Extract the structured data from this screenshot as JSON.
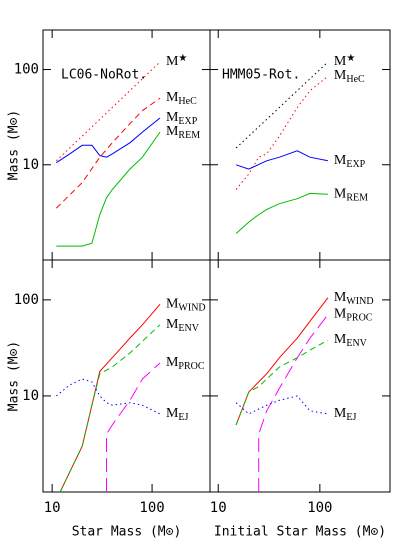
{
  "chart_data": [
    {
      "type": "line",
      "annotation": "LC06-NoRot.",
      "ylabel": "Mass (M⊙)",
      "log_x": true,
      "log_y": true,
      "xlim": [
        8.1,
        380
      ],
      "ylim": [
        1,
        260
      ],
      "xticks": [
        10,
        100
      ],
      "yticks": [
        10,
        100
      ],
      "show_xtick_labels": false,
      "show_ytick_labels": true,
      "series": [
        {
          "name": "M★",
          "color": "#ff0000",
          "dash": "dotted",
          "x": [
            11,
            120
          ],
          "values": [
            11,
            120
          ]
        },
        {
          "name": "MHeC",
          "color": "#ff0000",
          "dash": "dashed",
          "x": [
            11,
            20,
            30,
            40,
            60,
            80,
            120
          ],
          "values": [
            3.5,
            6.5,
            12,
            17,
            27,
            37,
            50
          ]
        },
        {
          "name": "MEXP",
          "color": "#0000ff",
          "dash": "solid",
          "x": [
            11,
            15,
            20,
            25,
            30,
            35,
            40,
            60,
            80,
            120
          ],
          "values": [
            10.5,
            13,
            16,
            16,
            12.5,
            12,
            13,
            17,
            22,
            31
          ]
        },
        {
          "name": "MREM",
          "color": "#00bb00",
          "dash": "solid",
          "x": [
            11,
            20,
            25,
            30,
            35,
            40,
            60,
            80,
            120
          ],
          "values": [
            1.4,
            1.4,
            1.5,
            3,
            4.5,
            5.5,
            9,
            12,
            22
          ]
        }
      ]
    },
    {
      "type": "line",
      "annotation": "HMM05-Rot.",
      "log_x": true,
      "log_y": true,
      "xlim": [
        8.3,
        490
      ],
      "ylim": [
        1,
        260
      ],
      "xticks": [
        10,
        100
      ],
      "yticks": [
        10,
        100
      ],
      "show_xtick_labels": false,
      "show_ytick_labels": false,
      "series": [
        {
          "name": "M★",
          "color": "#000000",
          "dash": "dotted",
          "x": [
            15,
            120
          ],
          "values": [
            15,
            120
          ]
        },
        {
          "name": "MHeC",
          "color": "#ff0000",
          "dash": "dotted",
          "x": [
            15,
            20,
            25,
            30,
            40,
            60,
            80,
            120
          ],
          "values": [
            5.5,
            8,
            12,
            13,
            20,
            40,
            60,
            85
          ]
        },
        {
          "name": "MEXP",
          "color": "#0000ff",
          "dash": "solid",
          "x": [
            15,
            20,
            30,
            40,
            60,
            80,
            120
          ],
          "values": [
            10,
            9,
            11,
            12,
            14,
            12,
            11
          ]
        },
        {
          "name": "MREM",
          "color": "#00bb00",
          "dash": "solid",
          "x": [
            15,
            20,
            25,
            30,
            40,
            60,
            80,
            120
          ],
          "values": [
            1.9,
            2.5,
            3,
            3.4,
            3.9,
            4.4,
            5,
            4.9
          ]
        }
      ]
    },
    {
      "type": "line",
      "ylabel": "Mass (M⊙)",
      "xlabel": "Star Mass (M⊙)",
      "log_x": true,
      "log_y": true,
      "xlim": [
        8.1,
        380
      ],
      "ylim": [
        1,
        260
      ],
      "xticks": [
        10,
        100
      ],
      "yticks": [
        10,
        100
      ],
      "show_xtick_labels": true,
      "show_ytick_labels": true,
      "series": [
        {
          "name": "MWIND",
          "color": "#ff0000",
          "dash": "solid",
          "x": [
            12,
            20,
            25,
            30,
            40,
            60,
            80,
            120
          ],
          "values": [
            1,
            3,
            8,
            18,
            25,
            40,
            55,
            90
          ]
        },
        {
          "name": "MENV",
          "color": "#00bb00",
          "dash": "dashed",
          "x": [
            12,
            20,
            25,
            30,
            40,
            60,
            80,
            120
          ],
          "values": [
            1,
            3,
            8,
            17,
            20,
            28,
            37,
            55
          ]
        },
        {
          "name": "MPROC",
          "color": "#ff00ff",
          "dash": "longdash",
          "x": [
            35,
            35,
            40,
            60,
            80,
            120
          ],
          "values": [
            1,
            4,
            5,
            9,
            15,
            22
          ]
        },
        {
          "name": "MEJ",
          "color": "#0000ff",
          "dash": "dotted",
          "x": [
            11,
            15,
            20,
            25,
            30,
            35,
            40,
            60,
            80,
            120
          ],
          "values": [
            10,
            13,
            15,
            14,
            10,
            8.5,
            8,
            8.5,
            8,
            6.5
          ]
        }
      ]
    },
    {
      "type": "line",
      "xlabel": "Initial Star Mass (M⊙)",
      "log_x": true,
      "log_y": true,
      "xlim": [
        8.3,
        490
      ],
      "ylim": [
        1,
        260
      ],
      "xticks": [
        10,
        100
      ],
      "yticks": [
        10,
        100
      ],
      "show_xtick_labels": true,
      "show_ytick_labels": false,
      "series": [
        {
          "name": "MWIND",
          "color": "#ff0000",
          "dash": "solid",
          "x": [
            15,
            20,
            30,
            40,
            60,
            80,
            120
          ],
          "values": [
            5,
            11,
            17,
            25,
            40,
            60,
            105
          ]
        },
        {
          "name": "MPROC",
          "color": "#ff00ff",
          "dash": "longdash",
          "x": [
            25,
            25,
            30,
            40,
            60,
            80,
            120
          ],
          "values": [
            1,
            4,
            7,
            12,
            25,
            40,
            70
          ]
        },
        {
          "name": "MENV",
          "color": "#00bb00",
          "dash": "dashed",
          "x": [
            15,
            20,
            25,
            30,
            40,
            60,
            80,
            120
          ],
          "values": [
            5,
            11,
            12.5,
            15,
            20,
            25,
            30,
            38
          ]
        },
        {
          "name": "MEJ",
          "color": "#0000ff",
          "dash": "dotted",
          "x": [
            15,
            20,
            30,
            40,
            60,
            80,
            120
          ],
          "values": [
            8.5,
            6.5,
            8,
            9,
            10,
            7,
            6.5
          ]
        }
      ]
    }
  ]
}
